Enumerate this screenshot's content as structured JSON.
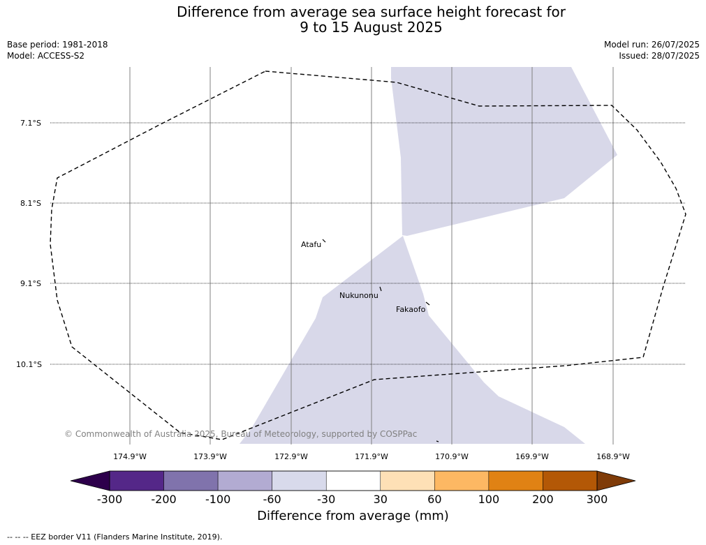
{
  "title": {
    "line1": "Difference from average sea surface height forecast for",
    "line2": "9 to 15 August 2025"
  },
  "meta_left": {
    "base_period": "Base period: 1981-2018",
    "model": "Model: ACCESS-S2"
  },
  "meta_right": {
    "model_run": "Model run: 26/07/2025",
    "issued": "Issued: 28/07/2025"
  },
  "map": {
    "lat_labels": [
      "7.1°S",
      "8.1°S",
      "9.1°S",
      "10.1°S"
    ],
    "lon_labels": [
      "174.9°W",
      "173.9°W",
      "172.9°W",
      "171.9°W",
      "170.9°W",
      "169.9°W",
      "168.9°W"
    ],
    "places": [
      "Atafu",
      "Nukunonu",
      "Fakaofo"
    ],
    "copyright": "© Commonwealth of Australia 2025, Bureau of Meteorology, supported by COSPPac",
    "anomaly_class_shown": "-60 to -30",
    "anomaly_fill_color": "#d8d8e9",
    "eez_line_style": "dashed"
  },
  "colorbar": {
    "ticks": [
      "-300",
      "-200",
      "-100",
      "-60",
      "-30",
      "30",
      "60",
      "100",
      "200",
      "300"
    ],
    "colors": [
      "#2d004b",
      "#542788",
      "#8073ac",
      "#b2abd2",
      "#d8daeb",
      "#ffffff",
      "#fee0b6",
      "#fdb863",
      "#e08214",
      "#b35806",
      "#7f3b08"
    ],
    "extend": "both",
    "label": "Difference from average (mm)"
  },
  "footnote": "--  --  -- EEZ border V11 (Flanders Marine Institute, 2019)."
}
